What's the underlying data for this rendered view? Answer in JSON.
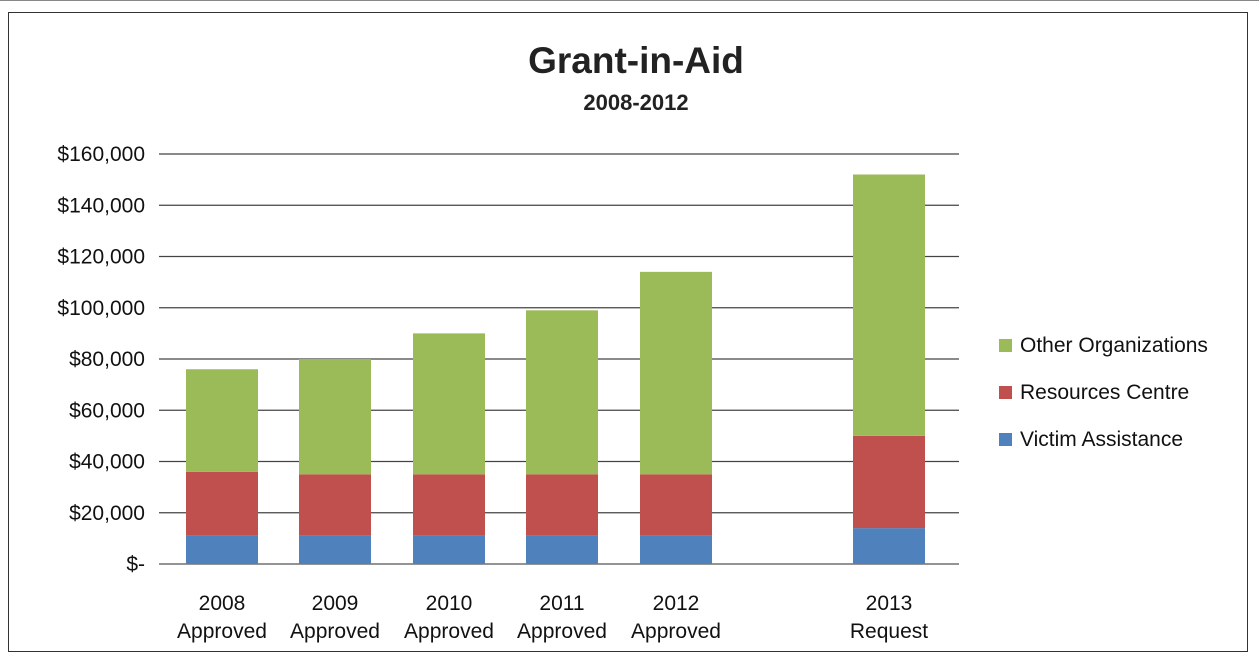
{
  "chart_data": {
    "type": "bar",
    "stacked": true,
    "title": "Grant-in-Aid",
    "subtitle": "2008-2012",
    "categories": [
      [
        "2008",
        "Approved"
      ],
      [
        "2009",
        "Approved"
      ],
      [
        "2010",
        "Approved"
      ],
      [
        "2011",
        "Approved"
      ],
      [
        "2012",
        "Approved"
      ],
      [
        "2013",
        "Request"
      ]
    ],
    "series": [
      {
        "name": "Victim Assistance",
        "color": "#4f81bd",
        "values": [
          11000,
          11000,
          11000,
          11000,
          11000,
          14000
        ]
      },
      {
        "name": "Resources Centre",
        "color": "#c0504d",
        "values": [
          25000,
          24000,
          24000,
          24000,
          24000,
          36000
        ]
      },
      {
        "name": "Other Organizations",
        "color": "#9bbb59",
        "values": [
          40000,
          45000,
          55000,
          64000,
          79000,
          102000
        ]
      }
    ],
    "legend_order": [
      "Other Organizations",
      "Resources Centre",
      "Victim Assistance"
    ],
    "ylim": [
      0,
      160000
    ],
    "yticks": [
      0,
      20000,
      40000,
      60000,
      80000,
      100000,
      120000,
      140000,
      160000
    ],
    "ytick_labels": [
      "$-",
      "$20,000",
      "$40,000",
      "$60,000",
      "$80,000",
      "$100,000",
      "$120,000",
      "$140,000",
      "$160,000"
    ],
    "grid": true,
    "legend_position": "right"
  }
}
